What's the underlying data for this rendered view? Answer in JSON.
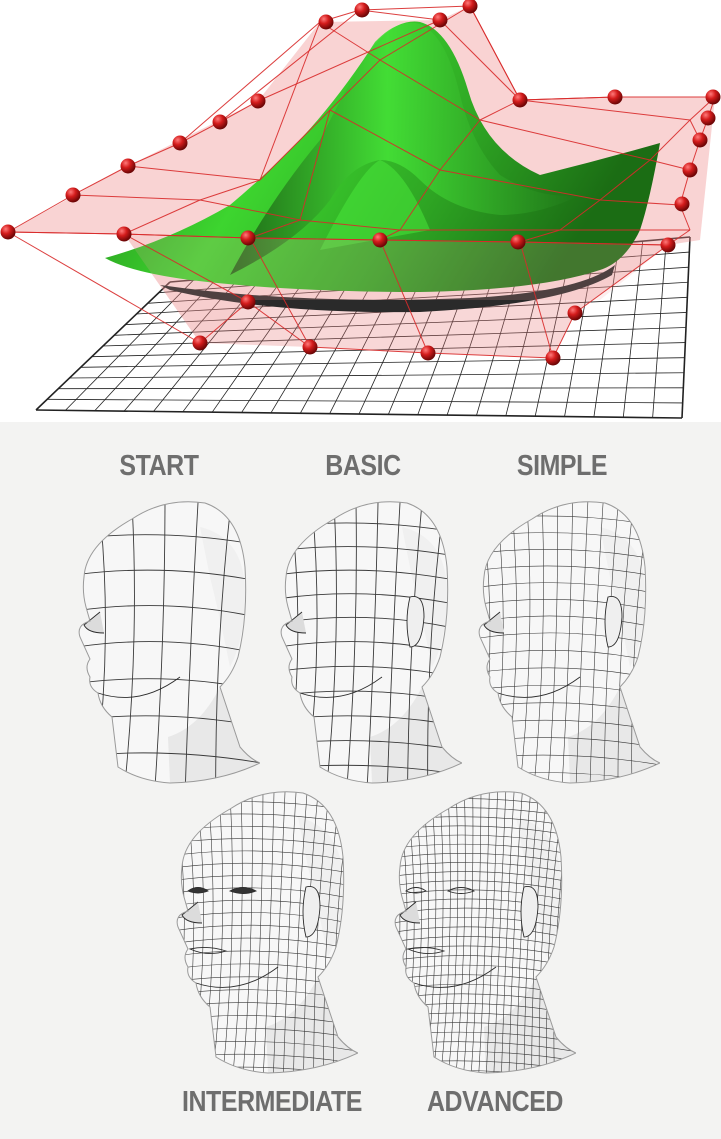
{
  "figure": {
    "top": {
      "surface_color": "#2fbf2a",
      "control_net_color": "#e03a3a",
      "control_point_color": "#c81818",
      "grid_color": "#111111"
    },
    "bottom": {
      "labels": {
        "start": "START",
        "basic": "BASIC",
        "simple": "SIMPLE",
        "intermediate": "INTERMEDIATE",
        "advanced": "ADVANCED"
      },
      "label_color": "#6e6e6e",
      "head_fill": "#f7f7f7",
      "wire_color": "#3a3a3a"
    }
  }
}
